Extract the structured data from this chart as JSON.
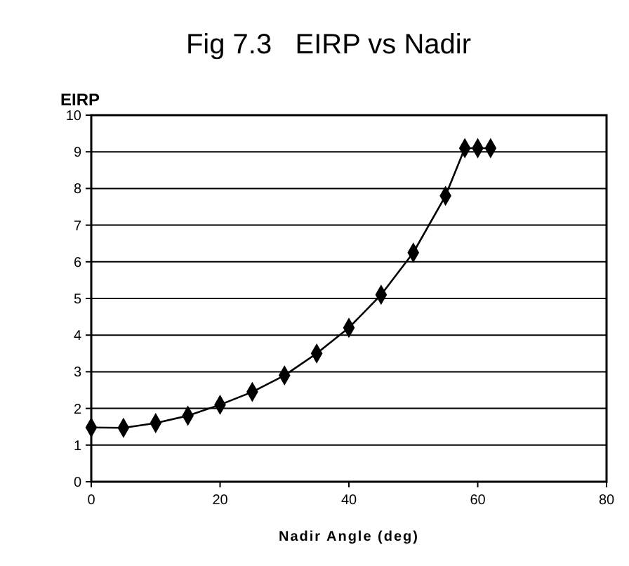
{
  "chart_data": {
    "type": "line",
    "title": "Fig 7.3   EIRP vs Nadir",
    "xlabel": "Nadir Angle (deg)",
    "ylabel": "EIRP",
    "x": [
      0,
      5,
      10,
      15,
      20,
      25,
      30,
      35,
      40,
      45,
      50,
      55,
      58,
      60,
      62
    ],
    "series": [
      {
        "color": "#000000",
        "values": [
          1.48,
          1.47,
          1.6,
          1.8,
          2.1,
          2.45,
          2.9,
          3.5,
          4.2,
          5.1,
          6.25,
          7.8,
          9.1,
          9.1,
          9.1
        ]
      }
    ],
    "xlim": [
      0,
      80
    ],
    "xticks": [
      0,
      20,
      40,
      60,
      80
    ],
    "ylim": [
      0,
      10
    ],
    "yticks": [
      0,
      1,
      2,
      3,
      4,
      5,
      6,
      7,
      8,
      9,
      10
    ],
    "grid": "y",
    "marker": "diamond",
    "line_style": "solid"
  }
}
